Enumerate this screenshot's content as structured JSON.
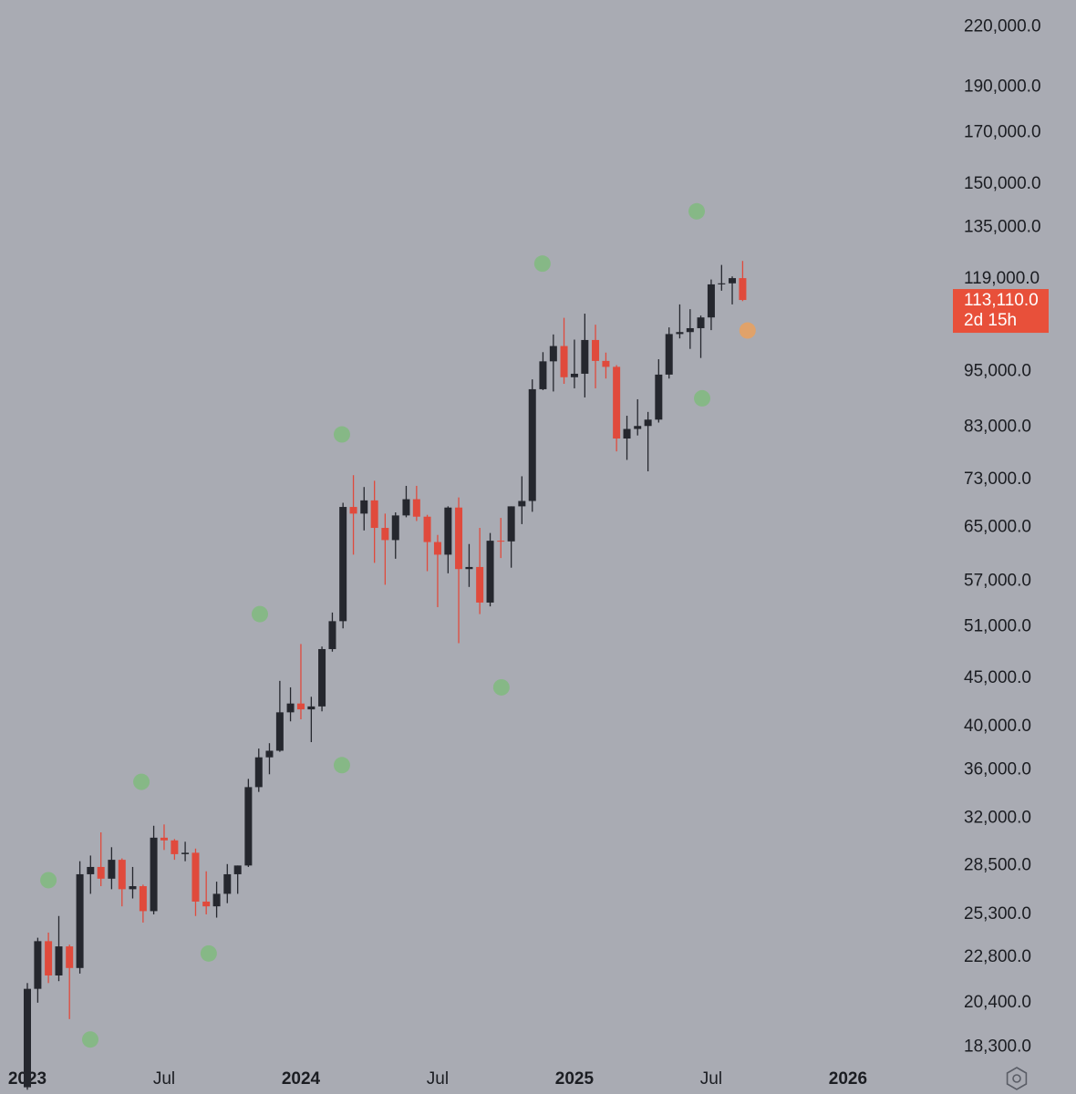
{
  "chart_data": {
    "type": "candlestick",
    "log_scale": true,
    "up_color": "#25272e",
    "down_color": "#e04a3c",
    "xlim": [
      2022.9,
      2026.367
    ],
    "xticks": [
      {
        "value": 2023,
        "label": "2023"
      },
      {
        "value": 2023.5,
        "label": "Jul"
      },
      {
        "value": 2024,
        "label": "2024"
      },
      {
        "value": 2024.5,
        "label": "Jul"
      },
      {
        "value": 2025,
        "label": "2025"
      },
      {
        "value": 2025.5,
        "label": "Jul"
      },
      {
        "value": 2026,
        "label": "2026"
      }
    ],
    "ylim": [
      17650,
      235000
    ],
    "yticks": [
      {
        "value": 220000,
        "label": "220,000.0"
      },
      {
        "value": 190000,
        "label": "190,000.0"
      },
      {
        "value": 170000,
        "label": "170,000.0"
      },
      {
        "value": 150000,
        "label": "150,000.0"
      },
      {
        "value": 135000,
        "label": "135,000.0"
      },
      {
        "value": 119000,
        "label": "119,000.0"
      },
      {
        "value": 95000,
        "label": "95,000.0"
      },
      {
        "value": 83000,
        "label": "83,000.0"
      },
      {
        "value": 73000,
        "label": "73,000.0"
      },
      {
        "value": 65000,
        "label": "65,000.0"
      },
      {
        "value": 57000,
        "label": "57,000.0"
      },
      {
        "value": 51000,
        "label": "51,000.0"
      },
      {
        "value": 45000,
        "label": "45,000.0"
      },
      {
        "value": 40000,
        "label": "40,000.0"
      },
      {
        "value": 36000,
        "label": "36,000.0"
      },
      {
        "value": 32000,
        "label": "32,000.0"
      },
      {
        "value": 28500,
        "label": "28,500.0"
      },
      {
        "value": 25300,
        "label": "25,300.0"
      },
      {
        "value": 22800,
        "label": "22,800.0"
      },
      {
        "value": 20400,
        "label": "20,400.0"
      },
      {
        "value": 18300,
        "label": "18,300.0"
      }
    ],
    "x": [
      2023.0,
      2023.038,
      2023.077,
      2023.115,
      2023.154,
      2023.192,
      2023.231,
      2023.269,
      2023.308,
      2023.346,
      2023.385,
      2023.423,
      2023.462,
      2023.5,
      2023.538,
      2023.577,
      2023.615,
      2023.654,
      2023.692,
      2023.731,
      2023.769,
      2023.808,
      2023.846,
      2023.885,
      2023.923,
      2023.962,
      2024.0,
      2024.038,
      2024.077,
      2024.115,
      2024.154,
      2024.192,
      2024.231,
      2024.269,
      2024.308,
      2024.346,
      2024.385,
      2024.423,
      2024.462,
      2024.5,
      2024.538,
      2024.577,
      2024.615,
      2024.654,
      2024.692,
      2024.731,
      2024.769,
      2024.808,
      2024.846,
      2024.885,
      2024.923,
      2024.962,
      2025.0,
      2025.038,
      2025.077,
      2025.115,
      2025.154,
      2025.192,
      2025.231,
      2025.269,
      2025.308,
      2025.346,
      2025.385,
      2025.423,
      2025.462,
      2025.5,
      2025.538,
      2025.577,
      2025.615
    ],
    "open": [
      16600,
      21100,
      23700,
      21800,
      23400,
      22200,
      27900,
      28400,
      27600,
      28900,
      26900,
      27100,
      25500,
      30500,
      30300,
      29300,
      29400,
      26100,
      25800,
      26600,
      27900,
      28500,
      34500,
      37100,
      37700,
      41400,
      42300,
      41700,
      42000,
      48300,
      51700,
      68300,
      67200,
      69400,
      64900,
      63000,
      66900,
      69600,
      66700,
      62700,
      60800,
      68200,
      58700,
      59000,
      54100,
      62900,
      62800,
      68400,
      69300,
      91000,
      97400,
      101100,
      93700,
      94500,
      102600,
      97500,
      96100,
      80700,
      82600,
      83200,
      84500,
      94300,
      104100,
      104600,
      105600,
      108400,
      117500,
      117800,
      119300
    ],
    "high": [
      21400,
      23900,
      24200,
      25200,
      23500,
      28800,
      29200,
      30900,
      29800,
      29000,
      28400,
      27200,
      31400,
      31500,
      30400,
      30200,
      29700,
      28100,
      27400,
      28600,
      28500,
      35200,
      37900,
      38400,
      44700,
      44000,
      48900,
      43000,
      48600,
      52800,
      69000,
      73800,
      71700,
      72800,
      67200,
      67400,
      71900,
      71900,
      67000,
      63800,
      68400,
      69900,
      62400,
      64900,
      64100,
      66500,
      68400,
      73600,
      93200,
      99600,
      104000,
      108300,
      102700,
      109400,
      106500,
      99500,
      96500,
      85300,
      88800,
      86100,
      97900,
      105800,
      111900,
      110600,
      108900,
      118900,
      123200,
      119800,
      124400
    ],
    "low": [
      16500,
      20400,
      21400,
      21500,
      19600,
      21900,
      26600,
      27100,
      26900,
      25800,
      26300,
      24800,
      25300,
      29600,
      28900,
      28800,
      25200,
      25300,
      25100,
      26000,
      26600,
      28400,
      34100,
      35600,
      37600,
      40500,
      40700,
      38500,
      41500,
      48000,
      50800,
      60800,
      64500,
      59600,
      56500,
      60200,
      66600,
      66000,
      58400,
      53500,
      58100,
      49000,
      56200,
      52600,
      53600,
      60300,
      58900,
      65500,
      67500,
      90800,
      90500,
      92200,
      91200,
      89200,
      91200,
      93400,
      78200,
      76600,
      81300,
      74500,
      83900,
      93400,
      103000,
      100400,
      98200,
      105100,
      115700,
      111900,
      112800
    ],
    "close": [
      21100,
      23700,
      21800,
      23400,
      22200,
      27900,
      28400,
      27600,
      28900,
      26900,
      27100,
      25500,
      30500,
      30300,
      29300,
      29400,
      26100,
      25800,
      26600,
      27900,
      28500,
      34500,
      37100,
      37700,
      41400,
      42300,
      41700,
      42000,
      48300,
      51700,
      68300,
      67200,
      69400,
      64900,
      63000,
      66900,
      69600,
      66700,
      62700,
      60800,
      68200,
      58700,
      59000,
      54100,
      62900,
      62800,
      68400,
      69300,
      91000,
      97400,
      101100,
      93700,
      94500,
      102600,
      97500,
      96100,
      80700,
      82600,
      83200,
      84500,
      94300,
      104100,
      104600,
      105600,
      108400,
      117500,
      117800,
      119300,
      113110
    ],
    "points": {
      "x": [
        2023.077,
        2023.23,
        2023.417,
        2023.663,
        2023.85,
        2024.15,
        2024.15,
        2024.733,
        2024.883,
        2025.447,
        2025.467,
        2025.633
      ],
      "values": [
        27500,
        18650,
        34950,
        23000,
        52600,
        36400,
        81500,
        44000,
        123600,
        140400,
        89000,
        105000
      ],
      "colors": [
        "#86b886",
        "#86b886",
        "#86b886",
        "#86b886",
        "#86b886",
        "#86b886",
        "#86b886",
        "#86b886",
        "#86b886",
        "#86b886",
        "#86b886",
        "#e0a26a"
      ]
    },
    "price_label": {
      "value": 113110,
      "label": "113,110.0"
    },
    "countdown": "2d 15h",
    "price_label_color": "#e8503a"
  }
}
